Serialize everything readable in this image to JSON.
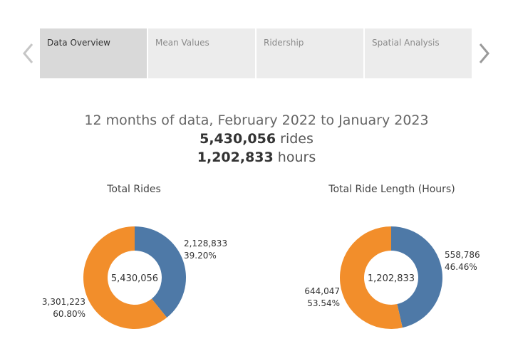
{
  "tabs": [
    {
      "label": "Data Overview",
      "active": true
    },
    {
      "label": "Mean Values",
      "active": false
    },
    {
      "label": "Ridership",
      "active": false
    },
    {
      "label": "Spatial Analysis",
      "active": false
    }
  ],
  "summary": {
    "period": "12 months of data, February 2022 to January 2023",
    "rides_value": "5,430,056",
    "rides_unit": "rides",
    "hours_value": "1,202,833",
    "hours_unit": "hours"
  },
  "colors": {
    "blue": "#4e79a7",
    "orange": "#f28e2b",
    "tab_active": "#d9d9d9",
    "tab_inactive": "#ececec"
  },
  "chart_data": [
    {
      "type": "pie",
      "title": "Total Rides",
      "center_label": "5,430,056",
      "slices": [
        {
          "value": 2128833,
          "value_label": "2,128,833",
          "percent_label": "39.20%",
          "color": "#4e79a7"
        },
        {
          "value": 3301223,
          "value_label": "3,301,223",
          "percent_label": "60.80%",
          "color": "#f28e2b"
        }
      ]
    },
    {
      "type": "pie",
      "title": "Total Ride Length (Hours)",
      "center_label": "1,202,833",
      "slices": [
        {
          "value": 558786,
          "value_label": "558,786",
          "percent_label": "46.46%",
          "color": "#4e79a7"
        },
        {
          "value": 644047,
          "value_label": "644,047",
          "percent_label": "53.54%",
          "color": "#f28e2b"
        }
      ]
    }
  ]
}
